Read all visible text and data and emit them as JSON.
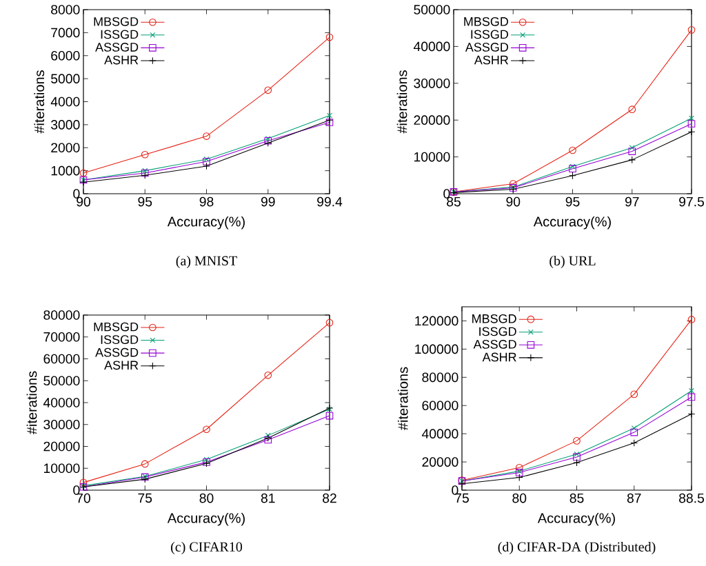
{
  "chart_data": [
    {
      "type": "line",
      "xlabel": "Accuracy(%)",
      "ylabel": "#iterations",
      "annotations": [
        "(a) MNIST"
      ],
      "categories": [
        "90",
        "95",
        "98",
        "99",
        "99.4"
      ],
      "ylim": [
        0,
        8000
      ],
      "yticks": [
        0,
        1000,
        2000,
        3000,
        4000,
        5000,
        6000,
        7000,
        8000
      ],
      "legend": "top left",
      "line_style": "solid",
      "series": [
        {
          "name": "MBSGD",
          "color": "#e51e10",
          "marker": "circle",
          "values": [
            900,
            1700,
            2500,
            4500,
            6800
          ]
        },
        {
          "name": "ISSGD",
          "color": "#009e73",
          "marker": "cross",
          "values": [
            600,
            1000,
            1500,
            2400,
            3400
          ]
        },
        {
          "name": "ASSGD",
          "color": "#9400d3",
          "marker": "square",
          "values": [
            600,
            900,
            1400,
            2300,
            3100
          ]
        },
        {
          "name": "ASHR",
          "color": "#000000",
          "marker": "plus",
          "values": [
            500,
            800,
            1200,
            2200,
            3200
          ]
        }
      ]
    },
    {
      "type": "line",
      "xlabel": "Accuracy(%)",
      "ylabel": "#iterations",
      "annotations": [
        "(b) URL"
      ],
      "categories": [
        "85",
        "90",
        "95",
        "97",
        "97.5"
      ],
      "ylim": [
        0,
        50000
      ],
      "yticks": [
        0,
        10000,
        20000,
        30000,
        40000,
        50000
      ],
      "legend": "top left",
      "line_style": "solid",
      "series": [
        {
          "name": "MBSGD",
          "color": "#e51e10",
          "marker": "circle",
          "values": [
            500,
            2700,
            11800,
            22900,
            44500
          ]
        },
        {
          "name": "ISSGD",
          "color": "#009e73",
          "marker": "cross",
          "values": [
            500,
            1800,
            7400,
            12500,
            20500
          ]
        },
        {
          "name": "ASSGD",
          "color": "#9400d3",
          "marker": "square",
          "values": [
            500,
            1600,
            6800,
            11500,
            19000
          ]
        },
        {
          "name": "ASHR",
          "color": "#000000",
          "marker": "plus",
          "values": [
            300,
            1200,
            4900,
            9200,
            16800
          ]
        }
      ]
    },
    {
      "type": "line",
      "xlabel": "Accuracy(%)",
      "ylabel": "#iterations",
      "annotations": [
        "(c) CIFAR10"
      ],
      "categories": [
        "70",
        "75",
        "80",
        "81",
        "82"
      ],
      "ylim": [
        0,
        80000
      ],
      "yticks": [
        0,
        10000,
        20000,
        30000,
        40000,
        50000,
        60000,
        70000,
        80000
      ],
      "legend": "top left",
      "line_style": "solid",
      "series": [
        {
          "name": "MBSGD",
          "color": "#e51e10",
          "marker": "circle",
          "values": [
            3500,
            12000,
            27800,
            52500,
            76500
          ]
        },
        {
          "name": "ISSGD",
          "color": "#009e73",
          "marker": "cross",
          "values": [
            2000,
            6300,
            14000,
            25000,
            37000
          ]
        },
        {
          "name": "ASSGD",
          "color": "#9400d3",
          "marker": "square",
          "values": [
            1500,
            6000,
            12800,
            23000,
            34000
          ]
        },
        {
          "name": "ASHR",
          "color": "#000000",
          "marker": "plus",
          "values": [
            1500,
            5000,
            12200,
            23800,
            37500
          ]
        }
      ]
    },
    {
      "type": "line",
      "xlabel": "Accuracy(%)",
      "ylabel": "#iterations",
      "annotations": [
        "(d) CIFAR-DA (Distributed)"
      ],
      "categories": [
        "75",
        "80",
        "85",
        "87",
        "88.5"
      ],
      "ylim": [
        0,
        130000
      ],
      "yticks": [
        0,
        20000,
        40000,
        60000,
        80000,
        100000,
        120000
      ],
      "legend": "top left",
      "line_style": "solid",
      "series": [
        {
          "name": "MBSGD",
          "color": "#e51e10",
          "marker": "circle",
          "values": [
            7000,
            16000,
            35000,
            68000,
            121000
          ]
        },
        {
          "name": "ISSGD",
          "color": "#009e73",
          "marker": "cross",
          "values": [
            6500,
            13500,
            25500,
            44000,
            70500
          ]
        },
        {
          "name": "ASSGD",
          "color": "#9400d3",
          "marker": "square",
          "values": [
            6500,
            12500,
            23500,
            41000,
            66000
          ]
        },
        {
          "name": "ASHR",
          "color": "#000000",
          "marker": "plus",
          "values": [
            4500,
            9000,
            19500,
            33500,
            54000
          ]
        }
      ]
    }
  ]
}
